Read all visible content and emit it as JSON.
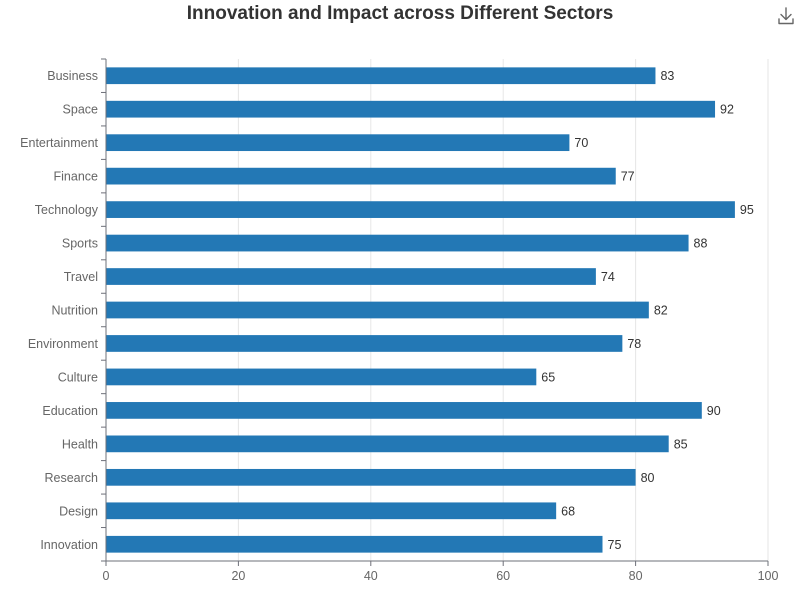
{
  "chart_data": {
    "type": "bar",
    "orientation": "horizontal",
    "title": "Innovation and Impact across Different Sectors",
    "xlabel": "",
    "ylabel": "",
    "xlim": [
      0,
      100
    ],
    "xticks": [
      0,
      20,
      40,
      60,
      80,
      100
    ],
    "grid": true,
    "legend": "none",
    "bar_color": "#2378b5",
    "categories": [
      "Business",
      "Space",
      "Entertainment",
      "Finance",
      "Technology",
      "Sports",
      "Travel",
      "Nutrition",
      "Environment",
      "Culture",
      "Education",
      "Health",
      "Research",
      "Design",
      "Innovation"
    ],
    "values": [
      83,
      92,
      70,
      77,
      95,
      88,
      74,
      82,
      78,
      65,
      90,
      85,
      80,
      68,
      75
    ]
  },
  "toolbar": {
    "download_icon": "download-icon"
  }
}
